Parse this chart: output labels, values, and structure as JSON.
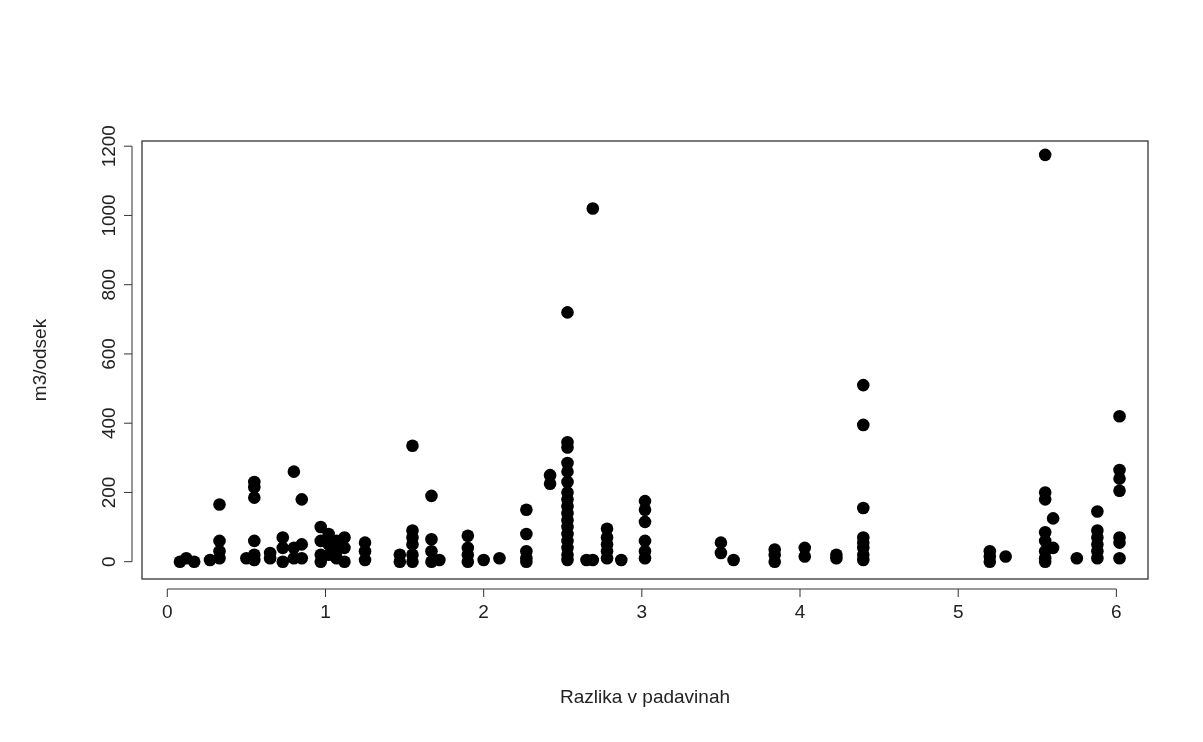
{
  "chart_data": {
    "type": "scatter",
    "xlabel": "Razlika v padavinah",
    "ylabel": "m3/odsek",
    "xlim": [
      -0.16,
      6.2
    ],
    "ylim": [
      -50,
      1215
    ],
    "xticks": [
      0,
      1,
      2,
      3,
      4,
      5,
      6
    ],
    "yticks": [
      0,
      200,
      400,
      600,
      800,
      1000,
      1200
    ],
    "marker": "circle",
    "grid": false,
    "series": [
      {
        "color": "#000000",
        "x": [
          0.08,
          0.12,
          0.17,
          0.27,
          0.33,
          0.33,
          0.33,
          0.33,
          0.5,
          0.55,
          0.55,
          0.55,
          0.55,
          0.55,
          0.55,
          0.65,
          0.65,
          0.73,
          0.73,
          0.73,
          0.8,
          0.8,
          0.8,
          0.85,
          0.85,
          0.85,
          0.97,
          0.97,
          0.97,
          0.97,
          1.02,
          1.02,
          1.02,
          1.07,
          1.07,
          1.07,
          1.12,
          1.12,
          1.12,
          1.25,
          1.25,
          1.25,
          1.47,
          1.47,
          1.55,
          1.55,
          1.55,
          1.55,
          1.55,
          1.55,
          1.67,
          1.67,
          1.67,
          1.67,
          1.72,
          1.9,
          1.9,
          1.9,
          1.9,
          2.0,
          2.1,
          2.27,
          2.27,
          2.27,
          2.27,
          2.27,
          2.42,
          2.42,
          2.53,
          2.53,
          2.53,
          2.53,
          2.53,
          2.53,
          2.53,
          2.53,
          2.53,
          2.53,
          2.53,
          2.53,
          2.53,
          2.53,
          2.53,
          2.53,
          2.53,
          2.65,
          2.69,
          2.69,
          2.78,
          2.78,
          2.78,
          2.78,
          2.78,
          2.87,
          3.02,
          3.02,
          3.02,
          3.02,
          3.02,
          3.02,
          3.5,
          3.5,
          3.58,
          3.84,
          3.84,
          3.84,
          4.03,
          4.03,
          4.23,
          4.23,
          4.4,
          4.4,
          4.4,
          4.4,
          4.4,
          4.4,
          4.4,
          4.4,
          5.2,
          5.2,
          5.2,
          5.3,
          5.55,
          5.55,
          5.55,
          5.55,
          5.55,
          5.55,
          5.55,
          5.55,
          5.6,
          5.6,
          5.75,
          5.88,
          5.88,
          5.88,
          5.88,
          5.88,
          5.88,
          6.02,
          6.02,
          6.02,
          6.02,
          6.02,
          6.02,
          6.02
        ],
        "values": [
          0,
          10,
          0,
          5,
          165,
          60,
          30,
          10,
          10,
          230,
          215,
          185,
          60,
          20,
          5,
          25,
          10,
          70,
          40,
          0,
          260,
          40,
          10,
          180,
          50,
          10,
          100,
          60,
          20,
          0,
          80,
          50,
          20,
          60,
          30,
          10,
          70,
          40,
          0,
          55,
          30,
          5,
          20,
          0,
          335,
          90,
          70,
          50,
          20,
          0,
          190,
          65,
          30,
          0,
          5,
          75,
          40,
          20,
          0,
          5,
          10,
          150,
          80,
          30,
          10,
          0,
          250,
          225,
          720,
          345,
          330,
          285,
          260,
          230,
          200,
          180,
          160,
          140,
          120,
          100,
          80,
          60,
          40,
          20,
          5,
          5,
          1020,
          5,
          95,
          70,
          50,
          30,
          10,
          5,
          175,
          150,
          115,
          60,
          30,
          10,
          55,
          25,
          5,
          35,
          20,
          0,
          40,
          15,
          20,
          10,
          510,
          395,
          155,
          70,
          55,
          40,
          20,
          5,
          30,
          15,
          0,
          15,
          1175,
          200,
          180,
          85,
          60,
          30,
          10,
          0,
          125,
          40,
          10,
          145,
          90,
          70,
          50,
          30,
          10,
          420,
          265,
          240,
          205,
          70,
          55,
          10
        ]
      }
    ]
  }
}
